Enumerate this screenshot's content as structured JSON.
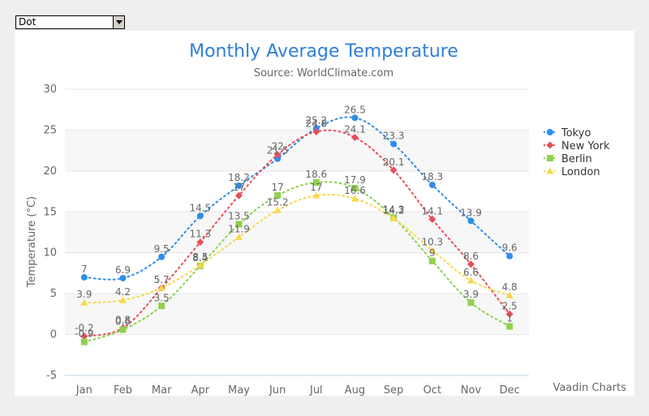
{
  "selector": {
    "value": "Dot"
  },
  "credits": "Vaadin Charts",
  "colors": {
    "series": [
      "#2f8ee8",
      "#e6505a",
      "#8fd14f",
      "#f8d84a"
    ],
    "plot_band": "#f7f7f7",
    "grid": "#e6e6e6",
    "title": "#2f7ed8",
    "axis_text": "#666666"
  },
  "chart_data": {
    "type": "line",
    "line_style": "dotted",
    "title": "Monthly Average Temperature",
    "subtitle": "Source: WorldClimate.com",
    "xlabel": "",
    "ylabel": "Temperature (°C)",
    "categories": [
      "Jan",
      "Feb",
      "Mar",
      "Apr",
      "May",
      "Jun",
      "Jul",
      "Aug",
      "Sep",
      "Oct",
      "Nov",
      "Dec"
    ],
    "ylim": [
      -5,
      30
    ],
    "yticks": [
      -5,
      0,
      5,
      10,
      15,
      20,
      25,
      30
    ],
    "grid": true,
    "legend_position": "right",
    "series": [
      {
        "name": "Tokyo",
        "marker": "circle",
        "values": [
          7,
          6.9,
          9.5,
          14.5,
          18.2,
          21.5,
          25.2,
          26.5,
          23.3,
          18.3,
          13.9,
          9.6
        ]
      },
      {
        "name": "New York",
        "marker": "diamond",
        "values": [
          -0.2,
          0.8,
          5.7,
          11.3,
          17,
          22,
          24.8,
          24.1,
          20.1,
          14.1,
          8.6,
          2.5
        ]
      },
      {
        "name": "Berlin",
        "marker": "square",
        "values": [
          -0.9,
          0.6,
          3.5,
          8.4,
          13.5,
          17,
          18.6,
          17.9,
          14.3,
          9,
          3.9,
          1
        ]
      },
      {
        "name": "London",
        "marker": "triangle",
        "values": [
          3.9,
          4.2,
          5.7,
          8.5,
          11.9,
          15.2,
          17,
          16.6,
          14.2,
          10.3,
          6.6,
          4.8
        ]
      }
    ]
  }
}
